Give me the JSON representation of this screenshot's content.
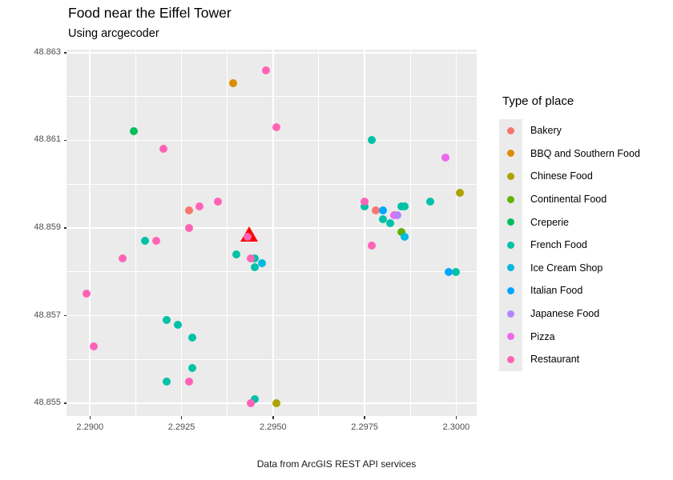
{
  "header": {
    "title": "Food near the Eiffel Tower",
    "subtitle": "Using arcgecoder"
  },
  "caption": "Data from ArcGIS REST API services",
  "legend": {
    "title": "Type of place",
    "items": [
      {
        "label": "Bakery",
        "color": "#F8766D"
      },
      {
        "label": "BBQ and Southern Food",
        "color": "#DB8E00"
      },
      {
        "label": "Chinese Food",
        "color": "#AEA200"
      },
      {
        "label": "Continental Food",
        "color": "#64B200"
      },
      {
        "label": "Creperie",
        "color": "#00BD5C"
      },
      {
        "label": "French Food",
        "color": "#00C1A7"
      },
      {
        "label": "Ice Cream Shop",
        "color": "#00BADE"
      },
      {
        "label": "Italian Food",
        "color": "#00A6FF"
      },
      {
        "label": "Japanese Food",
        "color": "#B385FF"
      },
      {
        "label": "Pizza",
        "color": "#EF67EB"
      },
      {
        "label": "Restaurant",
        "color": "#FF63B6"
      }
    ]
  },
  "axes": {
    "x": {
      "ticks": [
        {
          "value": 2.29,
          "label": "2.2900"
        },
        {
          "value": 2.2925,
          "label": "2.2925"
        },
        {
          "value": 2.295,
          "label": "2.2950"
        },
        {
          "value": 2.2975,
          "label": "2.2975"
        },
        {
          "value": 2.3,
          "label": "2.3000"
        }
      ],
      "minor": [
        2.29125,
        2.29375,
        2.29625,
        2.29875
      ]
    },
    "y": {
      "ticks": [
        {
          "value": 48.855,
          "label": "48.855"
        },
        {
          "value": 48.857,
          "label": "48.857"
        },
        {
          "value": 48.859,
          "label": "48.859"
        },
        {
          "value": 48.861,
          "label": "48.861"
        },
        {
          "value": 48.863,
          "label": "48.863"
        }
      ],
      "minor": [
        48.856,
        48.858,
        48.86,
        48.862
      ]
    }
  },
  "chart_data": {
    "type": "scatter",
    "title": "Food near the Eiffel Tower",
    "subtitle": "Using arcgecoder",
    "xlabel": "",
    "ylabel": "",
    "legend_position": "right",
    "grid": true,
    "x_domain": [
      2.28936,
      2.30056
    ],
    "y_domain": [
      48.85471,
      48.86307
    ],
    "series": [
      {
        "name": "Bakery",
        "color": "#F8766D",
        "points": [
          [
            2.2927,
            48.8594
          ],
          [
            2.2978,
            48.8594
          ]
        ]
      },
      {
        "name": "BBQ and Southern Food",
        "color": "#DB8E00",
        "points": [
          [
            2.2939,
            48.8623
          ]
        ]
      },
      {
        "name": "Chinese Food",
        "color": "#AEA200",
        "points": [
          [
            2.3001,
            48.8598
          ],
          [
            2.2951,
            48.855
          ]
        ]
      },
      {
        "name": "Continental Food",
        "color": "#64B200",
        "points": [
          [
            2.2985,
            48.8589
          ]
        ]
      },
      {
        "name": "Creperie",
        "color": "#00BD5C",
        "points": [
          [
            2.2912,
            48.8612
          ]
        ]
      },
      {
        "name": "French Food",
        "color": "#00C1A7",
        "points": [
          [
            2.2915,
            48.8587
          ],
          [
            2.2921,
            48.8569
          ],
          [
            2.2924,
            48.8568
          ],
          [
            2.2928,
            48.8565
          ],
          [
            2.2928,
            48.8558
          ],
          [
            2.2921,
            48.8555
          ],
          [
            2.294,
            48.8584
          ],
          [
            2.2945,
            48.8583
          ],
          [
            2.2945,
            48.8581
          ],
          [
            2.2945,
            48.8551
          ],
          [
            2.2977,
            48.861
          ],
          [
            2.2975,
            48.8595
          ],
          [
            2.298,
            48.8592
          ],
          [
            2.2982,
            48.8591
          ],
          [
            2.2985,
            48.8595
          ],
          [
            2.2986,
            48.8595
          ],
          [
            2.2993,
            48.8596
          ],
          [
            2.3,
            48.858
          ]
        ]
      },
      {
        "name": "Ice Cream Shop",
        "color": "#00BADE",
        "points": [
          [
            2.2947,
            48.8582
          ],
          [
            2.2986,
            48.8588
          ]
        ]
      },
      {
        "name": "Italian Food",
        "color": "#00A6FF",
        "points": [
          [
            2.298,
            48.8594
          ],
          [
            2.2998,
            48.858
          ]
        ]
      },
      {
        "name": "Pizza",
        "color": "#EF67EB",
        "points": [
          [
            2.2983,
            48.8593
          ],
          [
            2.2997,
            48.8606
          ]
        ]
      },
      {
        "name": "Japanese Food",
        "color": "#B385FF",
        "points": [
          [
            2.2984,
            48.8593
          ]
        ]
      },
      {
        "name": "Restaurant",
        "color": "#FF63B6",
        "points": [
          [
            2.2948,
            48.8626
          ],
          [
            2.2951,
            48.8613
          ],
          [
            2.292,
            48.8608
          ],
          [
            2.2935,
            48.8596
          ],
          [
            2.293,
            48.8595
          ],
          [
            2.2927,
            48.859
          ],
          [
            2.2918,
            48.8587
          ],
          [
            2.2909,
            48.8583
          ],
          [
            2.2943,
            48.8588
          ],
          [
            2.2944,
            48.8583
          ],
          [
            2.2899,
            48.8575
          ],
          [
            2.2901,
            48.8563
          ],
          [
            2.2927,
            48.8555
          ],
          [
            2.2944,
            48.855
          ],
          [
            2.2975,
            48.8596
          ],
          [
            2.2977,
            48.8586
          ]
        ]
      }
    ],
    "marker": {
      "name": "eiffel-tower",
      "shape": "triangle",
      "color": "#FF0000",
      "x": 2.29434,
      "y": 48.85886
    }
  },
  "colors": {
    "panel_bg": "#EBEBEB",
    "grid": "#FFFFFF",
    "axis_text": "#4D4D4D"
  }
}
